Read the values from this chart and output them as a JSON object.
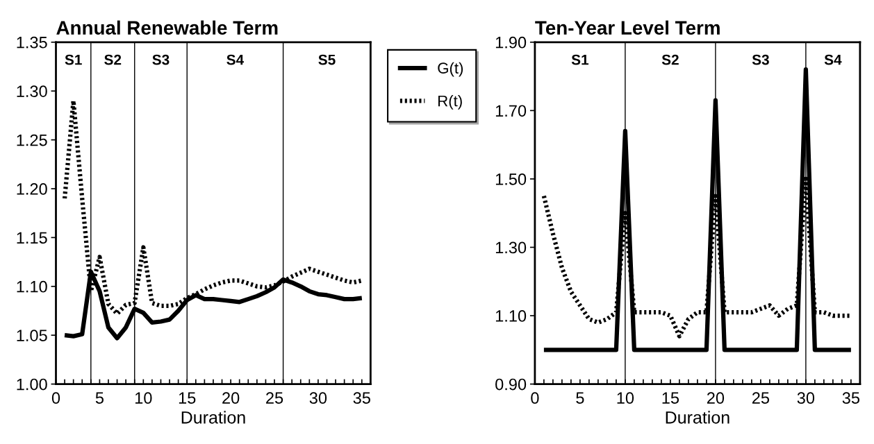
{
  "chart_data": [
    {
      "type": "line",
      "title": "Annual Renewable Term",
      "xlabel": "Duration",
      "x": [
        1,
        2,
        3,
        4,
        5,
        6,
        7,
        8,
        9,
        10,
        11,
        12,
        13,
        14,
        15,
        16,
        17,
        18,
        19,
        20,
        21,
        22,
        23,
        24,
        25,
        26,
        27,
        28,
        29,
        30,
        31,
        32,
        33,
        34,
        35
      ],
      "series": [
        {
          "name": "G(t)",
          "color": "#000000",
          "line_style": "solid",
          "values": [
            1.05,
            1.049,
            1.051,
            1.115,
            1.095,
            1.058,
            1.047,
            1.058,
            1.077,
            1.073,
            1.063,
            1.064,
            1.066,
            1.075,
            1.086,
            1.091,
            1.087,
            1.087,
            1.086,
            1.085,
            1.084,
            1.087,
            1.09,
            1.094,
            1.099,
            1.107,
            1.104,
            1.1,
            1.095,
            1.092,
            1.091,
            1.089,
            1.087,
            1.087,
            1.088
          ]
        },
        {
          "name": "R(t)",
          "color": "#000000",
          "line_style": "dotted",
          "values": [
            1.19,
            1.29,
            1.19,
            1.095,
            1.13,
            1.082,
            1.072,
            1.081,
            1.083,
            1.14,
            1.083,
            1.08,
            1.08,
            1.082,
            1.088,
            1.092,
            1.097,
            1.101,
            1.104,
            1.106,
            1.106,
            1.103,
            1.1,
            1.099,
            1.101,
            1.105,
            1.11,
            1.114,
            1.118,
            1.115,
            1.112,
            1.109,
            1.106,
            1.104,
            1.106
          ]
        }
      ],
      "xlim": [
        0,
        36
      ],
      "xticks": [
        0,
        {
          "value": 1,
          "label": null
        },
        {
          "value": 2,
          "label": null
        },
        {
          "value": 3,
          "label": null
        },
        {
          "value": 4,
          "label": null
        },
        5,
        {
          "value": 6,
          "label": null
        },
        {
          "value": 7,
          "label": null
        },
        {
          "value": 8,
          "label": null
        },
        {
          "value": 9,
          "label": null
        },
        10,
        {
          "value": 11,
          "label": null
        },
        {
          "value": 12,
          "label": null
        },
        {
          "value": 13,
          "label": null
        },
        {
          "value": 14,
          "label": null
        },
        15,
        {
          "value": 16,
          "label": null
        },
        {
          "value": 17,
          "label": null
        },
        {
          "value": 18,
          "label": null
        },
        {
          "value": 19,
          "label": null
        },
        20,
        {
          "value": 21,
          "label": null
        },
        {
          "value": 22,
          "label": null
        },
        {
          "value": 23,
          "label": null
        },
        {
          "value": 24,
          "label": null
        },
        25,
        {
          "value": 26,
          "label": null
        },
        {
          "value": 27,
          "label": null
        },
        {
          "value": 28,
          "label": null
        },
        {
          "value": 29,
          "label": null
        },
        30,
        {
          "value": 31,
          "label": null
        },
        {
          "value": 32,
          "label": null
        },
        {
          "value": 33,
          "label": null
        },
        {
          "value": 34,
          "label": null
        },
        35
      ],
      "ylim": [
        1.0,
        1.35
      ],
      "yticks": [
        {
          "value": 1.0,
          "label": "1.00"
        },
        1.05,
        {
          "value": 1.1,
          "label": "1.10"
        },
        1.15,
        {
          "value": 1.2,
          "label": "1.20"
        },
        1.25,
        {
          "value": 1.3,
          "label": "1.30"
        },
        1.35
      ],
      "ref_lines": [
        {
          "axis": "x",
          "value": 4
        },
        {
          "axis": "x",
          "value": 9
        },
        {
          "axis": "x",
          "value": 15
        },
        {
          "axis": "x",
          "value": 26
        }
      ],
      "annotations": [
        "S1",
        "S2",
        "S3",
        "S4",
        "S5"
      ],
      "legend": "right",
      "grid": false
    },
    {
      "type": "line",
      "title": "Ten-Year Level Term",
      "xlabel": "Duration",
      "x": [
        1,
        2,
        3,
        4,
        5,
        6,
        7,
        8,
        9,
        10,
        11,
        12,
        13,
        14,
        15,
        16,
        17,
        18,
        19,
        20,
        21,
        22,
        23,
        24,
        25,
        26,
        27,
        28,
        29,
        30,
        31,
        32,
        33,
        34,
        35
      ],
      "series": [
        {
          "color": "#000000",
          "line_style": "solid",
          "values": [
            1.0,
            1.0,
            1.0,
            1.0,
            1.0,
            1.0,
            1.0,
            1.0,
            1.0,
            1.64,
            1.0,
            1.0,
            1.0,
            1.0,
            1.0,
            1.0,
            1.0,
            1.0,
            1.0,
            1.73,
            1.0,
            1.0,
            1.0,
            1.0,
            1.0,
            1.0,
            1.0,
            1.0,
            1.0,
            1.82,
            1.0,
            1.0,
            1.0,
            1.0,
            1.0
          ]
        },
        {
          "color": "#000000",
          "line_style": "dotted",
          "values": [
            1.45,
            1.34,
            1.24,
            1.17,
            1.13,
            1.09,
            1.08,
            1.09,
            1.11,
            1.4,
            1.11,
            1.11,
            1.11,
            1.11,
            1.1,
            1.04,
            1.09,
            1.11,
            1.11,
            1.45,
            1.11,
            1.11,
            1.11,
            1.11,
            1.12,
            1.13,
            1.1,
            1.12,
            1.13,
            1.5,
            1.11,
            1.11,
            1.1,
            1.1,
            1.1
          ]
        }
      ],
      "xlim": [
        0,
        36
      ],
      "xticks": [
        0,
        {
          "value": 1,
          "label": null
        },
        {
          "value": 2,
          "label": null
        },
        {
          "value": 3,
          "label": null
        },
        {
          "value": 4,
          "label": null
        },
        5,
        {
          "value": 6,
          "label": null
        },
        {
          "value": 7,
          "label": null
        },
        {
          "value": 8,
          "label": null
        },
        {
          "value": 9,
          "label": null
        },
        10,
        {
          "value": 11,
          "label": null
        },
        {
          "value": 12,
          "label": null
        },
        {
          "value": 13,
          "label": null
        },
        {
          "value": 14,
          "label": null
        },
        15,
        {
          "value": 16,
          "label": null
        },
        {
          "value": 17,
          "label": null
        },
        {
          "value": 18,
          "label": null
        },
        {
          "value": 19,
          "label": null
        },
        20,
        {
          "value": 21,
          "label": null
        },
        {
          "value": 22,
          "label": null
        },
        {
          "value": 23,
          "label": null
        },
        {
          "value": 24,
          "label": null
        },
        25,
        {
          "value": 26,
          "label": null
        },
        {
          "value": 27,
          "label": null
        },
        {
          "value": 28,
          "label": null
        },
        {
          "value": 29,
          "label": null
        },
        30,
        {
          "value": 31,
          "label": null
        },
        {
          "value": 32,
          "label": null
        },
        {
          "value": 33,
          "label": null
        },
        {
          "value": 34,
          "label": null
        },
        35
      ],
      "ylim": [
        0.9,
        1.9
      ],
      "yticks": [
        {
          "value": 0.9,
          "label": "0.90"
        },
        {
          "value": 1.1,
          "label": "1.10"
        },
        {
          "value": 1.3,
          "label": "1.30"
        },
        {
          "value": 1.5,
          "label": "1.50"
        },
        {
          "value": 1.7,
          "label": "1.70"
        },
        {
          "value": 1.9,
          "label": "1.90"
        }
      ],
      "ref_lines": [
        {
          "axis": "x",
          "value": 10
        },
        {
          "axis": "x",
          "value": 20
        },
        {
          "axis": "x",
          "value": 30
        }
      ],
      "annotations": [
        "S1",
        "S2",
        "S3",
        "S4"
      ],
      "legend": false,
      "grid": false
    }
  ]
}
